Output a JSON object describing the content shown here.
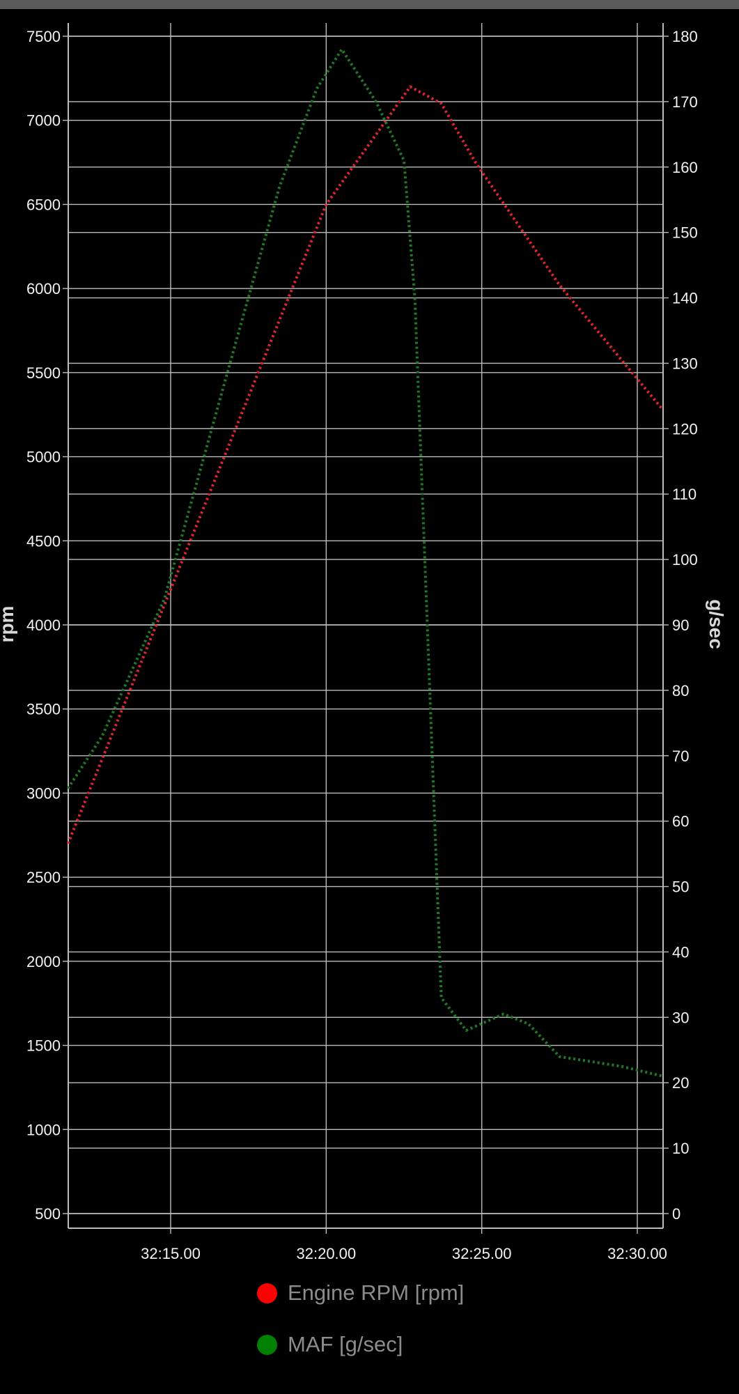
{
  "chart_data": {
    "type": "line",
    "x_tick_labels": [
      "32:15.00",
      "32:20.00",
      "32:25.00",
      "32:30.00"
    ],
    "x_tick_values": [
      15.0,
      20.0,
      25.0,
      30.0
    ],
    "x_unit": "mm:ss.ss (minute 32)",
    "xlim": [
      11.7,
      30.82
    ],
    "y_left": {
      "label": "rpm",
      "ticks": [
        500,
        1000,
        1500,
        2000,
        2500,
        3000,
        3500,
        4000,
        4500,
        5000,
        5500,
        6000,
        6500,
        7000,
        7500
      ],
      "ylim": [
        500,
        7500
      ]
    },
    "y_right": {
      "label": "g/sec",
      "ticks": [
        0,
        10,
        20,
        30,
        40,
        50,
        60,
        70,
        80,
        90,
        100,
        110,
        120,
        130,
        140,
        150,
        160,
        170,
        180
      ],
      "ylim": [
        0,
        180
      ]
    },
    "grid": true,
    "series": [
      {
        "name": "Engine RPM [rpm]",
        "axis": "left",
        "color": "#ff0000",
        "line_color": "#e0262b",
        "style": "dotted",
        "points": [
          [
            11.7,
            2700
          ],
          [
            20.0,
            6500
          ],
          [
            22.7,
            7200
          ],
          [
            23.7,
            7100
          ],
          [
            24.8,
            6750
          ],
          [
            27.5,
            6020
          ],
          [
            30.82,
            5280
          ]
        ]
      },
      {
        "name": "MAF [g/sec]",
        "axis": "right",
        "color": "#008000",
        "line_color": "#1f7a24",
        "style": "dotted",
        "points": [
          [
            11.7,
            65
          ],
          [
            12.8,
            73
          ],
          [
            14.8,
            94
          ],
          [
            17.2,
            135
          ],
          [
            18.5,
            157
          ],
          [
            19.7,
            172
          ],
          [
            20.5,
            178
          ],
          [
            21.6,
            170
          ],
          [
            22.5,
            161
          ],
          [
            22.85,
            140
          ],
          [
            23.25,
            90
          ],
          [
            23.7,
            33
          ],
          [
            24.5,
            28
          ],
          [
            25.7,
            30.5
          ],
          [
            26.5,
            29
          ],
          [
            27.5,
            24
          ],
          [
            29.5,
            22.5
          ],
          [
            30.82,
            21
          ]
        ]
      }
    ],
    "legend": [
      "Engine RPM [rpm]",
      "MAF [g/sec]"
    ],
    "legend_position": "bottom-center"
  }
}
